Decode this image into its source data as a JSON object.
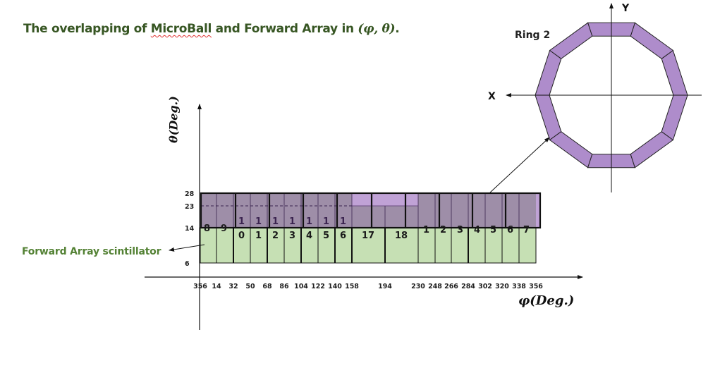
{
  "title": {
    "prefix": "The overlapping of ",
    "microball": "MicroBall",
    "middle": " and Forward Array in ",
    "math": "(φ, θ)",
    "suffix": "."
  },
  "ring": {
    "label": "Ring 2",
    "sides": 10,
    "axis_x": "X",
    "axis_y": "Y",
    "fill": "#ae8ccb"
  },
  "forward_array_label": "Forward Array scintillator",
  "colors": {
    "green": "#c6e0b4",
    "purple_overlay": "#9e8ea8",
    "light_purple": "#c0a2d6",
    "title": "#375623",
    "fa_label": "#548235"
  },
  "chart_data": {
    "type": "diagram",
    "xlabel": "φ(Deg.)",
    "ylabel": "θ(Deg.)",
    "x_ticks": [
      "356",
      "14",
      "32",
      "50",
      "68",
      "86",
      "104",
      "122",
      "140",
      "158",
      "194",
      "230",
      "248",
      "266",
      "284",
      "302",
      "320",
      "338",
      "356"
    ],
    "y_ticks": [
      "28",
      "23",
      "14",
      "6"
    ],
    "forward_array": {
      "theta_range": [
        6,
        14
      ],
      "phi_boundaries": [
        356,
        14,
        32,
        50,
        68,
        86,
        104,
        122,
        140,
        158,
        194,
        230,
        248,
        266,
        284,
        302,
        320,
        338,
        356
      ],
      "labels": [
        "0",
        "1",
        "2",
        "3",
        "4",
        "5",
        "6",
        "17",
        "18"
      ]
    },
    "microball_ring": {
      "theta_range": [
        14,
        28
      ],
      "theta_mid": 23,
      "labels_top": [
        "8",
        "9",
        "1",
        "1",
        "1",
        "1",
        "1",
        "1",
        "1",
        "1",
        "2",
        "3",
        "4",
        "5",
        "6",
        "7"
      ]
    }
  }
}
